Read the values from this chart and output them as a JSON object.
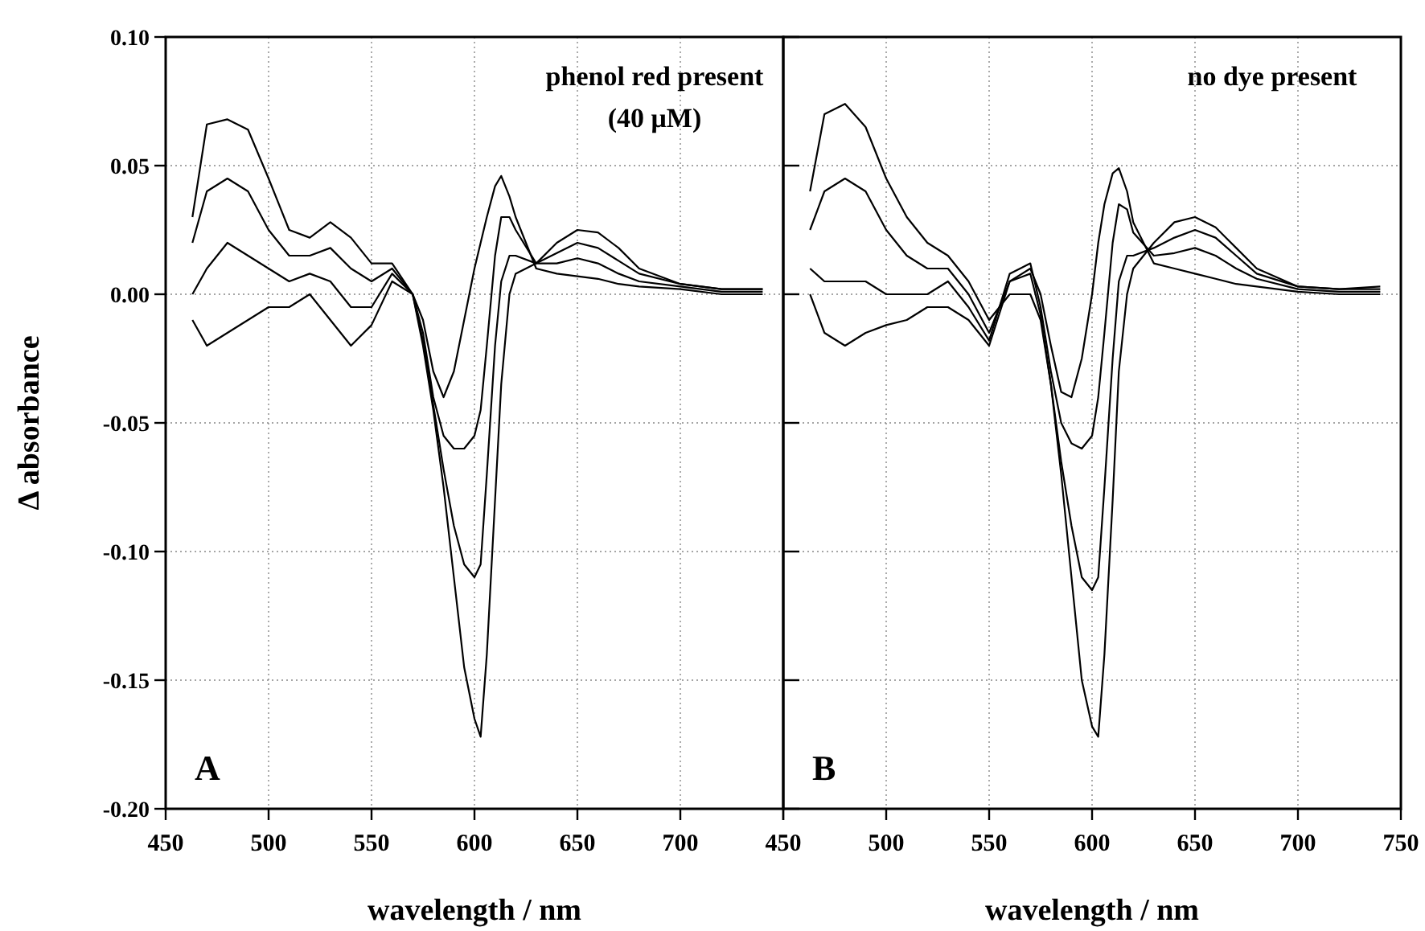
{
  "chart_data": [
    {
      "type": "line",
      "xlabel": "wavelength / nm",
      "ylabel": "Δ absorbance",
      "annotations": [
        "phenol red present",
        "(40 μM)",
        "A"
      ],
      "xlim": [
        450,
        750
      ],
      "xticks": [
        450,
        500,
        550,
        600,
        650,
        700,
        {
          "value": 750,
          "label": null
        }
      ],
      "ylim": [
        -0.2,
        0.1
      ],
      "yticks": [
        {
          "value": 0.1,
          "label": "0.10"
        },
        {
          "value": 0.05,
          "label": "0.05"
        },
        {
          "value": 0,
          "label": "0.00"
        },
        {
          "value": -0.05,
          "label": "-0.05"
        },
        {
          "value": -0.1,
          "label": "-0.10"
        },
        {
          "value": -0.15,
          "label": "-0.15"
        },
        {
          "value": -0.2,
          "label": "-0.20"
        }
      ],
      "grid": true,
      "marker": "none",
      "line_style": "solid",
      "x": [
        463,
        470,
        480,
        490,
        500,
        510,
        520,
        530,
        540,
        550,
        560,
        570,
        575,
        580,
        585,
        590,
        595,
        600,
        603,
        606,
        610,
        613,
        617,
        620,
        630,
        640,
        650,
        660,
        670,
        680,
        700,
        720,
        740
      ],
      "series": [
        {
          "color": "#000000",
          "values": [
            -0.01,
            -0.02,
            -0.015,
            -0.01,
            -0.005,
            -0.005,
            0.0,
            -0.01,
            -0.02,
            -0.012,
            0.005,
            0.0,
            -0.01,
            -0.03,
            -0.04,
            -0.03,
            -0.01,
            0.01,
            0.02,
            0.03,
            0.042,
            0.046,
            0.038,
            0.03,
            0.01,
            0.008,
            0.007,
            0.006,
            0.004,
            0.003,
            0.002,
            0.0,
            0.0
          ]
        },
        {
          "color": "#000000",
          "values": [
            0.0,
            0.01,
            0.02,
            0.015,
            0.01,
            0.005,
            0.008,
            0.005,
            -0.005,
            -0.005,
            0.008,
            0.0,
            -0.015,
            -0.04,
            -0.055,
            -0.06,
            -0.06,
            -0.055,
            -0.045,
            -0.02,
            0.015,
            0.03,
            0.03,
            0.025,
            0.012,
            0.012,
            0.014,
            0.012,
            0.008,
            0.005,
            0.003,
            0.001,
            0.001
          ]
        },
        {
          "color": "#000000",
          "values": [
            0.02,
            0.04,
            0.045,
            0.04,
            0.025,
            0.015,
            0.015,
            0.018,
            0.01,
            0.005,
            0.01,
            0.0,
            -0.018,
            -0.043,
            -0.068,
            -0.09,
            -0.105,
            -0.11,
            -0.105,
            -0.07,
            -0.02,
            0.005,
            0.015,
            0.015,
            0.012,
            0.016,
            0.02,
            0.018,
            0.013,
            0.008,
            0.004,
            0.002,
            0.002
          ]
        },
        {
          "color": "#000000",
          "values": [
            0.03,
            0.066,
            0.068,
            0.064,
            0.045,
            0.025,
            0.022,
            0.028,
            0.022,
            0.012,
            0.012,
            0.0,
            -0.02,
            -0.045,
            -0.075,
            -0.11,
            -0.145,
            -0.165,
            -0.172,
            -0.14,
            -0.08,
            -0.035,
            0.0,
            0.008,
            0.012,
            0.02,
            0.025,
            0.024,
            0.018,
            0.01,
            0.004,
            0.002,
            0.002
          ]
        }
      ]
    },
    {
      "type": "line",
      "xlabel": "wavelength / nm",
      "annotations": [
        "no dye present",
        "B"
      ],
      "tick_labels": "x",
      "xlim": [
        450,
        750
      ],
      "xticks": [
        450,
        500,
        550,
        600,
        650,
        700,
        750
      ],
      "ylim": [
        -0.2,
        0.1
      ],
      "yticks": [
        {
          "value": 0.1,
          "label": null
        },
        {
          "value": 0.05,
          "label": null
        },
        {
          "value": 0,
          "label": null
        },
        {
          "value": -0.05,
          "label": null
        },
        {
          "value": -0.1,
          "label": null
        },
        {
          "value": -0.15,
          "label": null
        },
        {
          "value": -0.2,
          "label": null
        }
      ],
      "grid": true,
      "marker": "none",
      "line_style": "solid",
      "x": [
        463,
        470,
        480,
        490,
        500,
        510,
        520,
        530,
        540,
        550,
        560,
        570,
        575,
        580,
        585,
        590,
        595,
        600,
        603,
        606,
        610,
        613,
        617,
        620,
        630,
        640,
        650,
        660,
        670,
        680,
        700,
        720,
        740
      ],
      "series": [
        {
          "color": "#000000",
          "values": [
            0.0,
            -0.015,
            -0.02,
            -0.015,
            -0.012,
            -0.01,
            -0.005,
            -0.005,
            -0.01,
            -0.02,
            0.005,
            0.01,
            0.0,
            -0.02,
            -0.038,
            -0.04,
            -0.025,
            0.0,
            0.02,
            0.035,
            0.047,
            0.049,
            0.04,
            0.028,
            0.012,
            0.01,
            0.008,
            0.006,
            0.004,
            0.003,
            0.001,
            0.0,
            0.0
          ]
        },
        {
          "color": "#000000",
          "values": [
            0.01,
            0.005,
            0.005,
            0.005,
            0.0,
            0.0,
            0.0,
            0.005,
            -0.005,
            -0.018,
            0.008,
            0.012,
            -0.005,
            -0.03,
            -0.05,
            -0.058,
            -0.06,
            -0.055,
            -0.04,
            -0.015,
            0.02,
            0.035,
            0.033,
            0.024,
            0.015,
            0.016,
            0.018,
            0.015,
            0.01,
            0.006,
            0.002,
            0.001,
            0.001
          ]
        },
        {
          "color": "#000000",
          "values": [
            0.025,
            0.04,
            0.045,
            0.04,
            0.025,
            0.015,
            0.01,
            0.01,
            0.0,
            -0.015,
            0.005,
            0.008,
            -0.008,
            -0.035,
            -0.065,
            -0.09,
            -0.11,
            -0.115,
            -0.11,
            -0.075,
            -0.025,
            0.005,
            0.015,
            0.015,
            0.018,
            0.022,
            0.025,
            0.022,
            0.015,
            0.008,
            0.003,
            0.002,
            0.002
          ]
        },
        {
          "color": "#000000",
          "values": [
            0.04,
            0.07,
            0.074,
            0.065,
            0.045,
            0.03,
            0.02,
            0.015,
            0.005,
            -0.01,
            0.0,
            0.0,
            -0.01,
            -0.035,
            -0.07,
            -0.11,
            -0.15,
            -0.168,
            -0.172,
            -0.14,
            -0.08,
            -0.03,
            0.0,
            0.01,
            0.02,
            0.028,
            0.03,
            0.026,
            0.018,
            0.01,
            0.003,
            0.002,
            0.003
          ]
        }
      ]
    }
  ]
}
